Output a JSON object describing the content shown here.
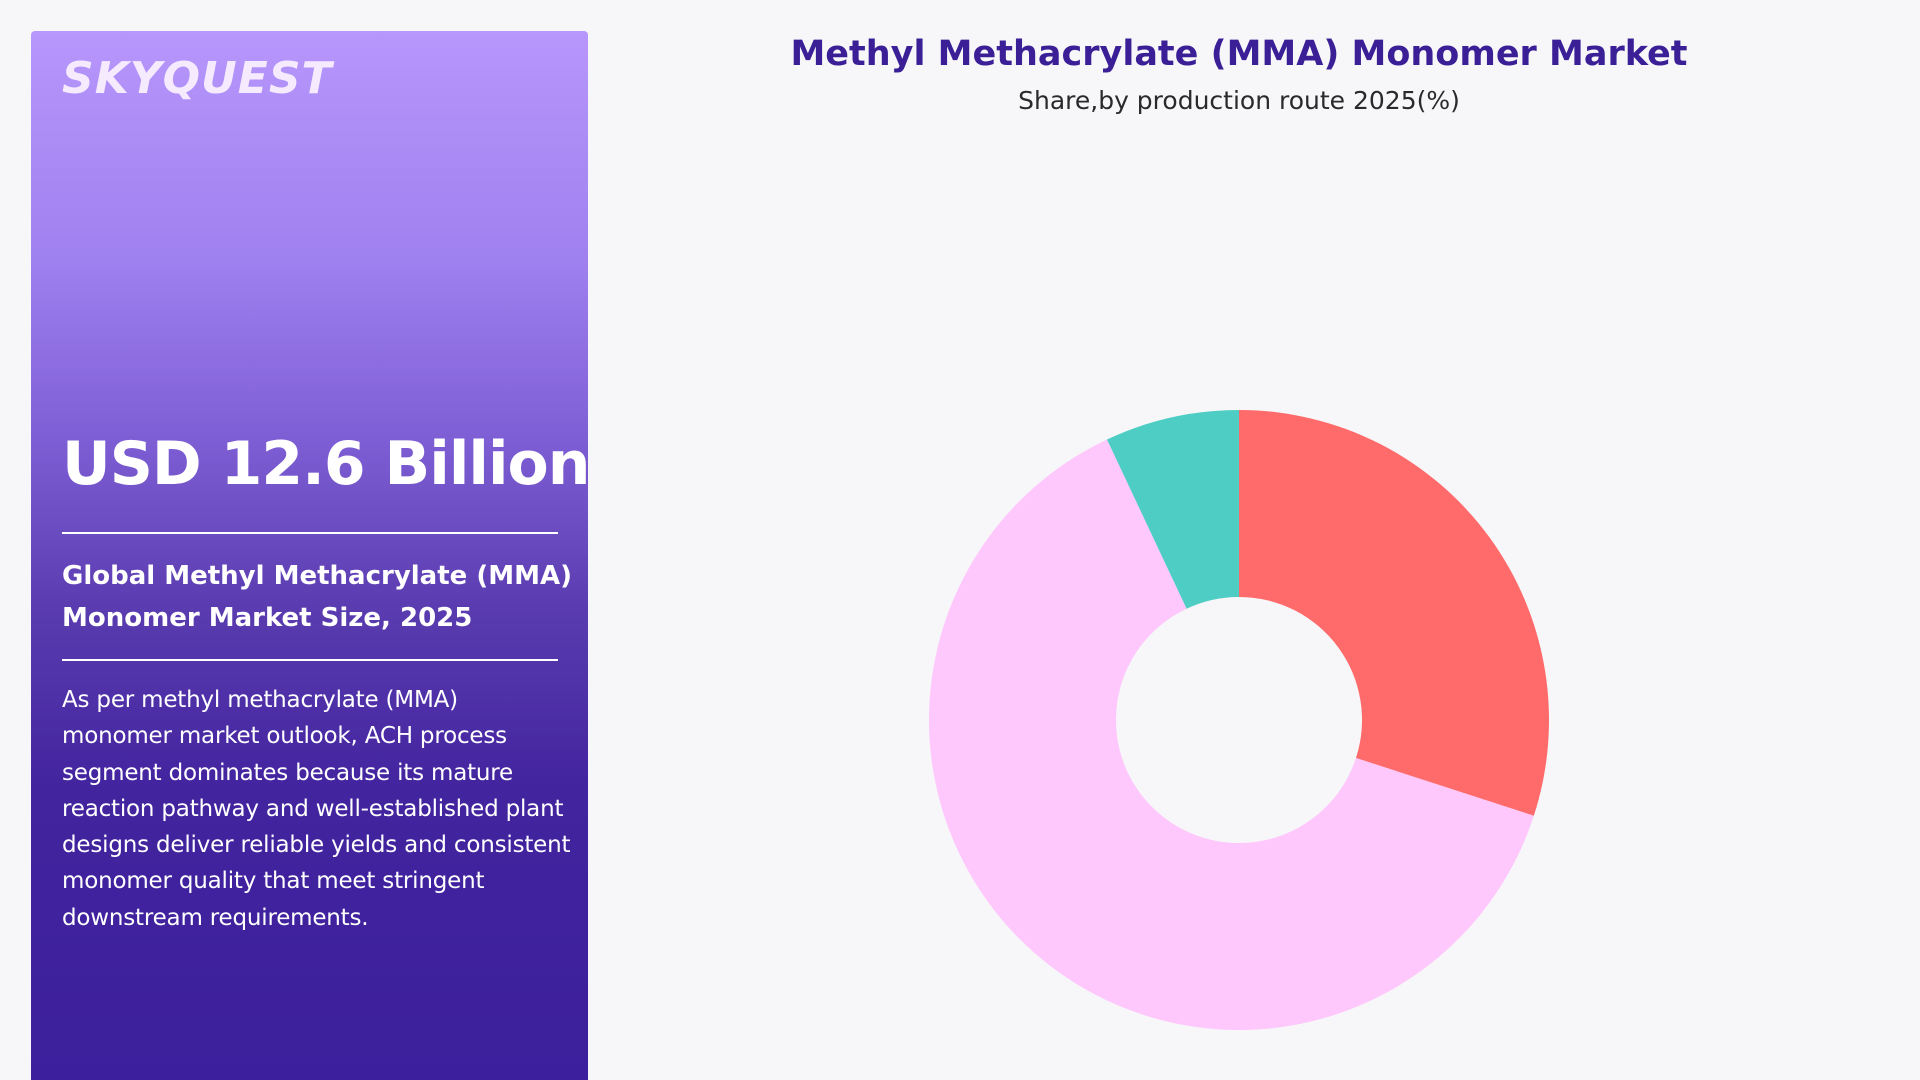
{
  "brand": {
    "name": "SKYQUEST"
  },
  "summary": {
    "value": "USD 12.6 Billion",
    "label": "Global Methyl Methacrylate (MMA) Monomer Market Size, 2025",
    "description": "As per methyl methacrylate (MMA) monomer market outlook, ACH process segment dominates because its mature reaction pathway and well-established plant designs deliver reliable yields and consistent monomer quality that meet stringent downstream requirements."
  },
  "colors": {
    "title": "#3a1f96",
    "panel_top": "#b797fb",
    "panel_bottom": "#3c1f9c"
  },
  "chart_data": {
    "type": "pie",
    "title": "Methyl Methacrylate (MMA) Monomer Market",
    "subtitle": "Share,by production route 2025(%)",
    "donut": true,
    "series": [
      {
        "value": 30,
        "color": "#ff6b6b"
      },
      {
        "value": 63,
        "color": "#fec8fc"
      },
      {
        "value": 7,
        "color": "#4ecdc4"
      }
    ]
  }
}
